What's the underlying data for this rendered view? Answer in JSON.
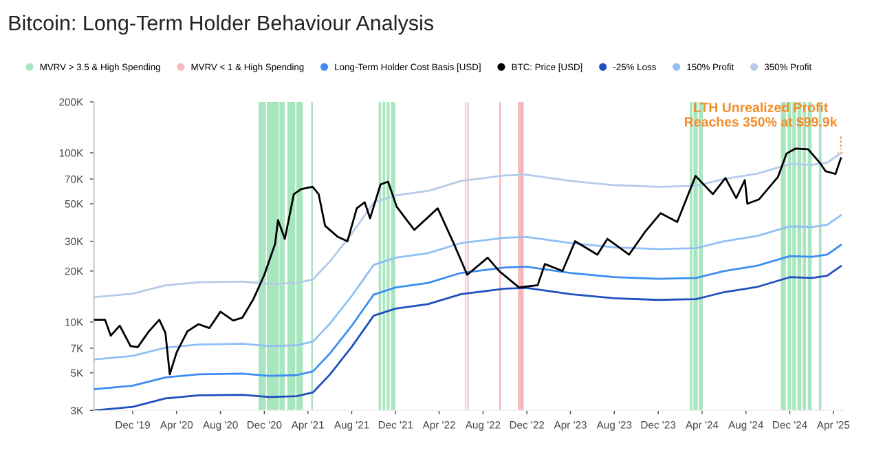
{
  "chart_data": {
    "type": "line",
    "title": "Bitcoin: Long-Term Holder Behaviour Analysis",
    "log": "y",
    "legend": "top",
    "grid": false,
    "marker": "none",
    "line_style": "solid",
    "xlim": [
      "2019-08-15",
      "2025-04-28"
    ],
    "xticks": [
      {
        "value": "2019-12-01",
        "label": "Dec '19"
      },
      {
        "value": "2020-04-01",
        "label": "Apr '20"
      },
      {
        "value": "2020-08-01",
        "label": "Aug '20"
      },
      {
        "value": "2020-12-01",
        "label": "Dec '20"
      },
      {
        "value": "2021-04-01",
        "label": "Apr '21"
      },
      {
        "value": "2021-08-01",
        "label": "Aug '21"
      },
      {
        "value": "2021-12-01",
        "label": "Dec '21"
      },
      {
        "value": "2022-04-01",
        "label": "Apr '22"
      },
      {
        "value": "2022-08-01",
        "label": "Aug '22"
      },
      {
        "value": "2022-12-01",
        "label": "Dec '22"
      },
      {
        "value": "2023-04-01",
        "label": "Apr '23"
      },
      {
        "value": "2023-08-01",
        "label": "Aug '23"
      },
      {
        "value": "2023-12-01",
        "label": "Dec '23"
      },
      {
        "value": "2024-04-01",
        "label": "Apr '24"
      },
      {
        "value": "2024-08-01",
        "label": "Aug '24"
      },
      {
        "value": "2024-12-01",
        "label": "Dec '24"
      },
      {
        "value": "2025-04-01",
        "label": "Apr '25"
      }
    ],
    "ylim": [
      3000,
      200000
    ],
    "yticks": [
      {
        "value": 3000,
        "label": "3K"
      },
      {
        "value": 5000,
        "label": "5K"
      },
      {
        "value": 7000,
        "label": "7K"
      },
      {
        "value": 10000,
        "label": "10K"
      },
      {
        "value": 20000,
        "label": "20K"
      },
      {
        "value": 30000,
        "label": "30K"
      },
      {
        "value": 50000,
        "label": "50K"
      },
      {
        "value": 70000,
        "label": "70K"
      },
      {
        "value": 100000,
        "label": "100K"
      },
      {
        "value": 200000,
        "label": "200K"
      }
    ],
    "series": [
      {
        "name": "Long-Term Holder Cost Basis [USD]",
        "color": "#3b8ef0",
        "x": [
          "2019-08-15",
          "2019-12-01",
          "2020-03-01",
          "2020-06-01",
          "2020-10-01",
          "2020-12-15",
          "2021-03-01",
          "2021-04-15",
          "2021-06-01",
          "2021-08-01",
          "2021-10-01",
          "2021-12-01",
          "2022-03-01",
          "2022-06-01",
          "2022-10-01",
          "2022-12-01",
          "2023-04-01",
          "2023-08-01",
          "2023-12-01",
          "2024-03-15",
          "2024-06-01",
          "2024-09-01",
          "2024-12-01",
          "2025-02-01",
          "2025-03-15",
          "2025-04-22"
        ],
        "values": [
          4000,
          4200,
          4700,
          4900,
          4950,
          4800,
          4850,
          5100,
          6500,
          9500,
          14500,
          16000,
          17000,
          19500,
          21000,
          21200,
          19500,
          18400,
          18000,
          18200,
          20000,
          21500,
          24500,
          24300,
          25000,
          28500
        ]
      },
      {
        "name": "BTC: Price [USD]",
        "color": "#000000",
        "x": [
          "2019-08-15",
          "2019-09-15",
          "2019-10-01",
          "2019-10-26",
          "2019-11-25",
          "2019-12-15",
          "2020-01-15",
          "2020-02-13",
          "2020-03-01",
          "2020-03-13",
          "2020-04-01",
          "2020-05-01",
          "2020-06-01",
          "2020-07-01",
          "2020-08-01",
          "2020-09-05",
          "2020-10-01",
          "2020-11-01",
          "2020-12-01",
          "2020-12-31",
          "2021-01-08",
          "2021-01-27",
          "2021-02-21",
          "2021-03-13",
          "2021-04-14",
          "2021-05-01",
          "2021-05-19",
          "2021-06-22",
          "2021-07-20",
          "2021-08-15",
          "2021-09-06",
          "2021-09-21",
          "2021-10-20",
          "2021-11-10",
          "2021-12-04",
          "2022-01-22",
          "2022-03-28",
          "2022-05-12",
          "2022-06-18",
          "2022-08-14",
          "2022-09-15",
          "2022-11-09",
          "2022-12-31",
          "2023-01-20",
          "2023-03-10",
          "2023-04-14",
          "2023-06-15",
          "2023-07-13",
          "2023-09-11",
          "2023-10-25",
          "2023-12-08",
          "2024-01-23",
          "2024-03-14",
          "2024-05-01",
          "2024-06-05",
          "2024-07-05",
          "2024-07-29",
          "2024-08-05",
          "2024-09-06",
          "2024-10-29",
          "2024-11-22",
          "2024-12-17",
          "2025-01-21",
          "2025-02-25",
          "2025-03-10",
          "2025-04-07",
          "2025-04-22"
        ],
        "values": [
          10300,
          10300,
          8300,
          9500,
          7200,
          7100,
          8800,
          10300,
          8600,
          4900,
          6600,
          8800,
          9700,
          9200,
          11500,
          10200,
          10600,
          13700,
          19000,
          29000,
          40000,
          31000,
          57000,
          61000,
          63000,
          57000,
          37000,
          32000,
          30000,
          47000,
          51000,
          41000,
          65000,
          67500,
          48000,
          35000,
          47000,
          29000,
          19000,
          24000,
          20000,
          16000,
          16500,
          22000,
          20000,
          30000,
          25000,
          31000,
          25000,
          34000,
          44000,
          39000,
          73000,
          57000,
          71000,
          54000,
          69000,
          50000,
          53000,
          72000,
          99000,
          106000,
          105000,
          86000,
          78000,
          75000,
          93000
        ]
      },
      {
        "name": "-25% Loss",
        "color": "#1f4fbf",
        "x": [
          "2019-08-15",
          "2019-12-01",
          "2020-03-01",
          "2020-06-01",
          "2020-10-01",
          "2020-12-15",
          "2021-03-01",
          "2021-04-15",
          "2021-06-01",
          "2021-08-01",
          "2021-10-01",
          "2021-12-01",
          "2022-03-01",
          "2022-06-01",
          "2022-10-01",
          "2022-12-01",
          "2023-04-01",
          "2023-08-01",
          "2023-12-01",
          "2024-03-15",
          "2024-06-01",
          "2024-09-01",
          "2024-12-01",
          "2025-02-01",
          "2025-03-15",
          "2025-04-22"
        ],
        "values": [
          3000,
          3150,
          3530,
          3680,
          3710,
          3600,
          3640,
          3830,
          4880,
          7130,
          10900,
          12000,
          12750,
          14600,
          15750,
          15900,
          14600,
          13800,
          13500,
          13650,
          15000,
          16100,
          18400,
          18200,
          18750,
          21400
        ]
      },
      {
        "name": "150% Profit",
        "color": "#8fbff5",
        "x": [
          "2019-08-15",
          "2019-12-01",
          "2020-03-01",
          "2020-06-01",
          "2020-10-01",
          "2020-12-15",
          "2021-03-01",
          "2021-04-15",
          "2021-06-01",
          "2021-08-01",
          "2021-10-01",
          "2021-12-01",
          "2022-03-01",
          "2022-06-01",
          "2022-10-01",
          "2022-12-01",
          "2023-04-01",
          "2023-08-01",
          "2023-12-01",
          "2024-03-15",
          "2024-06-01",
          "2024-09-01",
          "2024-12-01",
          "2025-02-01",
          "2025-03-15",
          "2025-04-22"
        ],
        "values": [
          6000,
          6300,
          7050,
          7350,
          7430,
          7200,
          7280,
          7650,
          9750,
          14250,
          21750,
          24000,
          25500,
          29250,
          31500,
          31800,
          29250,
          27600,
          27000,
          27300,
          30000,
          32250,
          36750,
          36450,
          37500,
          42750
        ]
      },
      {
        "name": "350% Profit",
        "color": "#b5cbe8",
        "x": [
          "2019-08-15",
          "2019-12-01",
          "2020-03-01",
          "2020-06-01",
          "2020-10-01",
          "2020-12-15",
          "2021-03-01",
          "2021-04-15",
          "2021-06-01",
          "2021-08-01",
          "2021-10-01",
          "2021-12-01",
          "2022-03-01",
          "2022-06-01",
          "2022-10-01",
          "2022-12-01",
          "2023-04-01",
          "2023-08-01",
          "2023-12-01",
          "2024-03-15",
          "2024-06-01",
          "2024-09-01",
          "2024-12-01",
          "2025-02-01",
          "2025-03-15",
          "2025-04-22"
        ],
        "values": [
          14000,
          14700,
          16450,
          17150,
          17330,
          16800,
          16980,
          17850,
          22750,
          33250,
          50750,
          56000,
          59500,
          68250,
          73500,
          74200,
          68250,
          64400,
          63000,
          63700,
          70000,
          75250,
          85750,
          85050,
          87500,
          99750
        ]
      }
    ],
    "bands": [
      {
        "axis": "x",
        "from": "2020-11-15",
        "to": "2020-12-05",
        "label": "MVRV > 3.5 & High Spending",
        "color": "#a8e6bf"
      },
      {
        "axis": "x",
        "from": "2020-12-08",
        "to": "2021-01-10",
        "color": "#a8e6bf"
      },
      {
        "axis": "x",
        "from": "2021-01-12",
        "to": "2021-01-27",
        "color": "#a8e6bf"
      },
      {
        "axis": "x",
        "from": "2021-02-03",
        "to": "2021-02-25",
        "color": "#a8e6bf"
      },
      {
        "axis": "x",
        "from": "2021-02-28",
        "to": "2021-03-18",
        "color": "#a8e6bf"
      },
      {
        "axis": "x",
        "from": "2021-04-10",
        "to": "2021-04-15",
        "color": "#a8e6bf"
      },
      {
        "axis": "x",
        "from": "2021-10-15",
        "to": "2021-10-22",
        "color": "#a8e6bf"
      },
      {
        "axis": "x",
        "from": "2021-10-26",
        "to": "2021-11-02",
        "color": "#a8e6bf"
      },
      {
        "axis": "x",
        "from": "2021-11-06",
        "to": "2021-11-14",
        "color": "#a8e6bf"
      },
      {
        "axis": "x",
        "from": "2021-11-18",
        "to": "2021-11-30",
        "color": "#a8e6bf"
      },
      {
        "axis": "x",
        "from": "2022-06-12",
        "to": "2022-06-15",
        "label": "MVRV < 1 & High Spending",
        "color": "#f7b8bd"
      },
      {
        "axis": "x",
        "from": "2022-06-18",
        "to": "2022-06-22",
        "color": "#f7b8bd"
      },
      {
        "axis": "x",
        "from": "2022-09-15",
        "to": "2022-09-20",
        "color": "#f7b8bd"
      },
      {
        "axis": "x",
        "from": "2022-11-06",
        "to": "2022-11-22",
        "color": "#f7b8bd"
      },
      {
        "axis": "x",
        "from": "2024-02-27",
        "to": "2024-03-05",
        "color": "#a8e6bf"
      },
      {
        "axis": "x",
        "from": "2024-03-08",
        "to": "2024-03-20",
        "color": "#a8e6bf"
      },
      {
        "axis": "x",
        "from": "2024-03-23",
        "to": "2024-04-03",
        "color": "#a8e6bf"
      },
      {
        "axis": "x",
        "from": "2024-11-06",
        "to": "2024-11-20",
        "color": "#a8e6bf"
      },
      {
        "axis": "x",
        "from": "2024-11-25",
        "to": "2024-12-05",
        "color": "#a8e6bf"
      },
      {
        "axis": "x",
        "from": "2024-12-08",
        "to": "2024-12-18",
        "color": "#a8e6bf"
      },
      {
        "axis": "x",
        "from": "2024-12-22",
        "to": "2025-01-02",
        "color": "#a8e6bf"
      },
      {
        "axis": "x",
        "from": "2025-01-06",
        "to": "2025-01-15",
        "color": "#a8e6bf"
      },
      {
        "axis": "x",
        "from": "2025-01-20",
        "to": "2025-01-31",
        "color": "#a8e6bf"
      },
      {
        "axis": "x",
        "from": "2025-02-20",
        "to": "2025-02-27",
        "color": "#a8e6bf"
      }
    ],
    "annotations": [
      {
        "text": "LTH Unrealized Profit\nReaches 350% at $99.9k",
        "x": "2025-04-22",
        "y": 99750
      }
    ]
  }
}
